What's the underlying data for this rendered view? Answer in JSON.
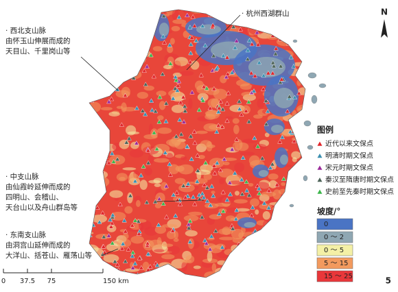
{
  "annotations": [
    {
      "lines": [
        "· 西北支山脉",
        "由怀玉山伸展而成的",
        "天目山、千里岗山等"
      ]
    },
    {
      "lines": [
        "· 杭州西湖群山"
      ]
    },
    {
      "lines": [
        "· 中支山脉",
        "由仙霞岭延伸而成的",
        "四明山、会稽山、",
        "天台山以及舟山群岛等"
      ]
    },
    {
      "lines": [
        "· 东南支山脉",
        "由洞宫山延伸而成的",
        "大洋山、括苍山、雁荡山等"
      ]
    }
  ],
  "legend": {
    "title": "图例",
    "items": [
      {
        "label": "近代以来文保点",
        "color": "#e0262b"
      },
      {
        "label": "明清时期文保点",
        "color": "#3a8fb0"
      },
      {
        "label": "宋元时期文保点",
        "color": "#9b2a9a"
      },
      {
        "label": "秦汉至隋唐时期文保点",
        "color": "#4d6358"
      },
      {
        "label": "史前至先秦时期文保点",
        "color": "#3bb54a"
      }
    ]
  },
  "slope_legend": {
    "title": "坡度/°",
    "classes": [
      {
        "label": "0",
        "color": "#4a74c4"
      },
      {
        "label": "0 ～ 2",
        "color": "#8fa7b3"
      },
      {
        "label": "0 ～ 5",
        "color": "#f4f0a6"
      },
      {
        "label": "5 ～ 15",
        "color": "#f39a5e"
      },
      {
        "label": "15 ～ 25",
        "color": "#e8373a"
      }
    ]
  },
  "scale_bar": {
    "labels": [
      "0",
      "37.5",
      "75",
      "150 km"
    ]
  },
  "north": "N",
  "page_number": "5"
}
